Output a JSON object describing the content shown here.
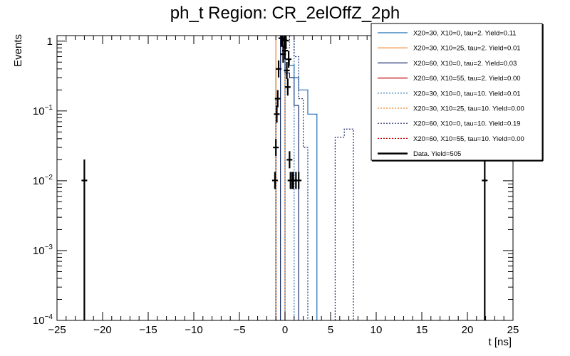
{
  "chart_data": {
    "type": "histogram",
    "title": "ph_t Region: CR_2elOffZ_2ph",
    "xlabel": "t [ns]",
    "ylabel": "Events",
    "xlim": [
      -25,
      25
    ],
    "ylim": [
      0.0001,
      1.2
    ],
    "yscale": "log",
    "x_ticks": [
      "−25",
      "−20",
      "−15",
      "−10",
      "−5",
      "0",
      "5",
      "10",
      "15",
      "20",
      "25"
    ],
    "y_ticks": [
      {
        "base": "10",
        "exp": "−4",
        "value": 0.0001
      },
      {
        "base": "10",
        "exp": "−3",
        "value": 0.001
      },
      {
        "base": "10",
        "exp": "−2",
        "value": 0.01
      },
      {
        "base": "10",
        "exp": "−1",
        "value": 0.1
      },
      {
        "base": "1",
        "exp": "",
        "value": 1
      }
    ],
    "series": [
      {
        "name": "X20=30, X10=0, tau=2. Yield=0.11",
        "color": "#1f6fb5",
        "dash": "solid",
        "width": 1.2,
        "bins": [
          [
            -1,
            -0.5,
            0.4
          ],
          [
            -0.5,
            0,
            1.2
          ],
          [
            0,
            0.5,
            0.55
          ],
          [
            0.5,
            1,
            0.45
          ],
          [
            1,
            1.5,
            0.3
          ],
          [
            1.5,
            2.5,
            0.2
          ],
          [
            2.5,
            3.5,
            0.09
          ]
        ]
      },
      {
        "name": "X20=30, X10=25, tau=2. Yield=0.01",
        "color": "#f07f24",
        "dash": "solid",
        "width": 1.2,
        "bins": [
          [
            -1,
            -0.5,
            1.2
          ],
          [
            -0.5,
            0,
            1.2
          ]
        ]
      },
      {
        "name": "X20=60, X10=0, tau=2. Yield=0.03",
        "color": "#1b2a6b",
        "dash": "solid",
        "width": 1.2,
        "bins": [
          [
            -0.5,
            0,
            1.2
          ],
          [
            0,
            0.5,
            0.35
          ],
          [
            0.5,
            1,
            0.3
          ],
          [
            1,
            1.5,
            0.12
          ]
        ]
      },
      {
        "name": "X20=60, X10=55, tau=2. Yield=0.00",
        "color": "#c00000",
        "dash": "solid",
        "width": 1.2,
        "bins": []
      },
      {
        "name": "X20=30, X10=0, tau=10. Yield=0.01",
        "color": "#1f6fb5",
        "dash": "2,2",
        "width": 1.2,
        "bins": [
          [
            0,
            0.5,
            0.8
          ],
          [
            0.5,
            1,
            1.2
          ]
        ]
      },
      {
        "name": "X20=30, X10=25, tau=10. Yield=0.00",
        "color": "#f07f24",
        "dash": "2,2",
        "width": 1.2,
        "bins": []
      },
      {
        "name": "X20=60, X10=0, tau=10. Yield=0.19",
        "color": "#1b2a6b",
        "dash": "2,2",
        "width": 1.2,
        "bins": [
          [
            -1,
            -0.5,
            0.15
          ],
          [
            -0.5,
            0,
            1.2
          ],
          [
            0,
            0.5,
            1.0
          ],
          [
            0.5,
            1,
            1.2
          ],
          [
            1,
            1.5,
            0.6
          ],
          [
            1.5,
            2,
            0.15
          ],
          [
            2,
            2.5,
            0.03
          ],
          [
            5.5,
            6.5,
            0.042
          ],
          [
            6.5,
            7.5,
            0.055
          ]
        ]
      },
      {
        "name": "X20=60, X10=55, tau=10. Yield=0.00",
        "color": "#c00000",
        "dash": "2,2",
        "width": 1.2,
        "bins": []
      }
    ],
    "data": {
      "name": "Data. Yield=505",
      "color": "#000000",
      "points": [
        [
          -22.0,
          0.0101
        ],
        [
          -1.1,
          0.0101
        ],
        [
          -1.0,
          0.03
        ],
        [
          -0.9,
          0.09
        ],
        [
          -0.8,
          0.15
        ],
        [
          -0.7,
          0.4
        ],
        [
          -0.4,
          1.1
        ],
        [
          -0.3,
          1.1
        ],
        [
          -0.2,
          0.65
        ],
        [
          -0.1,
          1.05
        ],
        [
          0.0,
          0.73
        ],
        [
          0.1,
          1.02
        ],
        [
          0.2,
          0.38
        ],
        [
          0.3,
          0.22
        ],
        [
          0.4,
          0.55
        ],
        [
          0.5,
          0.02
        ],
        [
          0.6,
          0.0101
        ],
        [
          0.8,
          0.0101
        ],
        [
          0.9,
          0.0101
        ],
        [
          1.2,
          0.0101
        ],
        [
          1.5,
          0.0101
        ],
        [
          21.9,
          0.0101
        ]
      ]
    },
    "legend_position": "top-right"
  }
}
